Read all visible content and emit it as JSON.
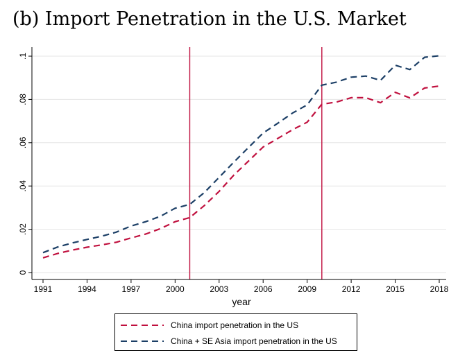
{
  "chart_data": {
    "type": "line",
    "title": "(b) Import Penetration in the U.S. Market",
    "xlabel": "year",
    "ylabel": "",
    "x": [
      1991,
      1992,
      1993,
      1994,
      1995,
      1996,
      1997,
      1998,
      1999,
      2000,
      2001,
      2002,
      2003,
      2004,
      2005,
      2006,
      2007,
      2008,
      2009,
      2010,
      2011,
      2012,
      2013,
      2014,
      2015,
      2016,
      2017,
      2018
    ],
    "xlim": [
      1991,
      2018
    ],
    "ylim": [
      0,
      0.1
    ],
    "xticks": [
      "1991",
      "1994",
      "1997",
      "2000",
      "2003",
      "2006",
      "2009",
      "2012",
      "2015",
      "2018"
    ],
    "yticks": [
      "0",
      ".02",
      ".04",
      ".06",
      ".08",
      ".1"
    ],
    "vlines": [
      2001,
      2010
    ],
    "grid": true,
    "legend_position": "bottom",
    "series": [
      {
        "name": "China import penetration in the US",
        "color": "#c0103e",
        "dash": "dashed",
        "values": [
          0.0068,
          0.0088,
          0.0104,
          0.0117,
          0.0128,
          0.014,
          0.016,
          0.0178,
          0.0203,
          0.0235,
          0.0254,
          0.031,
          0.0375,
          0.045,
          0.0515,
          0.058,
          0.062,
          0.066,
          0.0695,
          0.0778,
          0.0788,
          0.0808,
          0.0808,
          0.0785,
          0.0833,
          0.0807,
          0.0853,
          0.0862
        ]
      },
      {
        "name": "China + SE Asia import penetration in the US",
        "color": "#1c3f66",
        "dash": "dashed",
        "values": [
          0.0092,
          0.0118,
          0.0137,
          0.0153,
          0.0168,
          0.0187,
          0.0215,
          0.0235,
          0.026,
          0.0297,
          0.0315,
          0.037,
          0.044,
          0.051,
          0.0578,
          0.0645,
          0.069,
          0.0737,
          0.0775,
          0.0866,
          0.088,
          0.0903,
          0.0908,
          0.0888,
          0.0958,
          0.0938,
          0.0995,
          0.1002
        ]
      }
    ]
  }
}
